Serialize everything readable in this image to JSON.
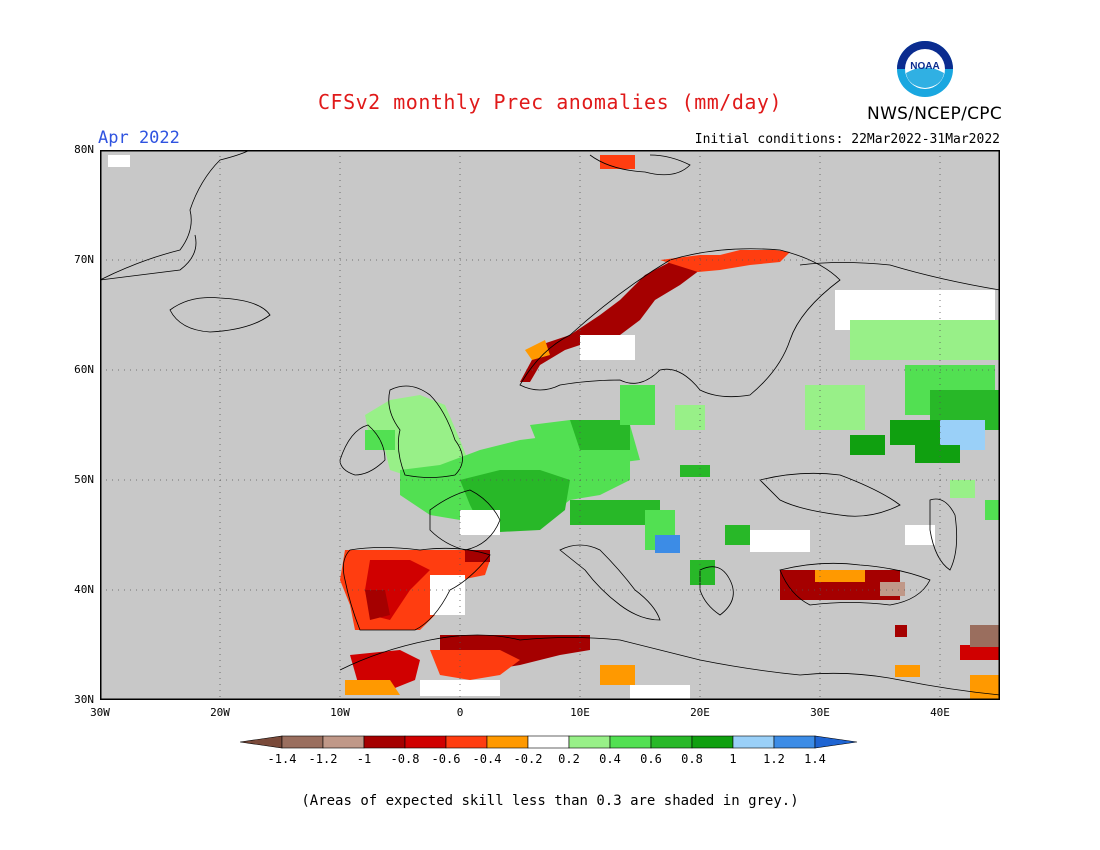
{
  "header": {
    "title": "CFSv2 monthly Prec anomalies (mm/day)",
    "month": "Apr 2022",
    "initial_conditions": "Initial conditions: 22Mar2022-31Mar2022",
    "agency": "NWS/NCEP/CPC",
    "logo_text": "NOAA"
  },
  "map": {
    "lon_range": [
      -30,
      45
    ],
    "lat_range": [
      30,
      80
    ],
    "lat_labels": [
      "80N",
      "70N",
      "60N",
      "50N",
      "40N",
      "30N"
    ],
    "lon_labels": [
      "30W",
      "20W",
      "10W",
      "0",
      "10E",
      "20E",
      "30E",
      "40E"
    ],
    "grid_lines": "dotted",
    "ocean_color": "#c8c8c8",
    "land_skill_color": "#c8c8c8",
    "low_skill_note": "grey",
    "anomaly_regions": [
      {
        "region": "Western Norway coast",
        "level": "-1"
      },
      {
        "region": "Northern Norway",
        "level": "-0.8"
      },
      {
        "region": "Svalbard",
        "level": "-0.6"
      },
      {
        "region": "Iberian Peninsula",
        "level": "-0.8"
      },
      {
        "region": "Morocco / Algeria",
        "level": "-1"
      },
      {
        "region": "Turkey south",
        "level": "-1"
      },
      {
        "region": "British Isles",
        "level": "0.2"
      },
      {
        "region": "France / Germany / Benelux",
        "level": "0.6"
      },
      {
        "region": "Central Europe",
        "level": "0.8"
      },
      {
        "region": "Western Russia",
        "level": "0.8"
      },
      {
        "region": "Ukraine north",
        "level": "1.2"
      },
      {
        "region": "Adriatic",
        "level": "1.4"
      }
    ]
  },
  "colorbar": {
    "colors": [
      "#7a4a3a",
      "#9a6e5e",
      "#c09888",
      "#a50000",
      "#d00000",
      "#ff3d10",
      "#ff9900",
      "#ffffff",
      "#98f088",
      "#52e052",
      "#28b828",
      "#10a010",
      "#9ad0f8",
      "#3c8ce6",
      "#1e64d2"
    ],
    "labels": [
      "-1.4",
      "-1.2",
      "-1",
      "-0.8",
      "-0.6",
      "-0.4",
      "-0.2",
      "0.2",
      "0.4",
      "0.6",
      "0.8",
      "1",
      "1.2",
      "1.4"
    ]
  },
  "footnote": "(Areas of expected skill less than 0.3 are shaded in grey.)"
}
